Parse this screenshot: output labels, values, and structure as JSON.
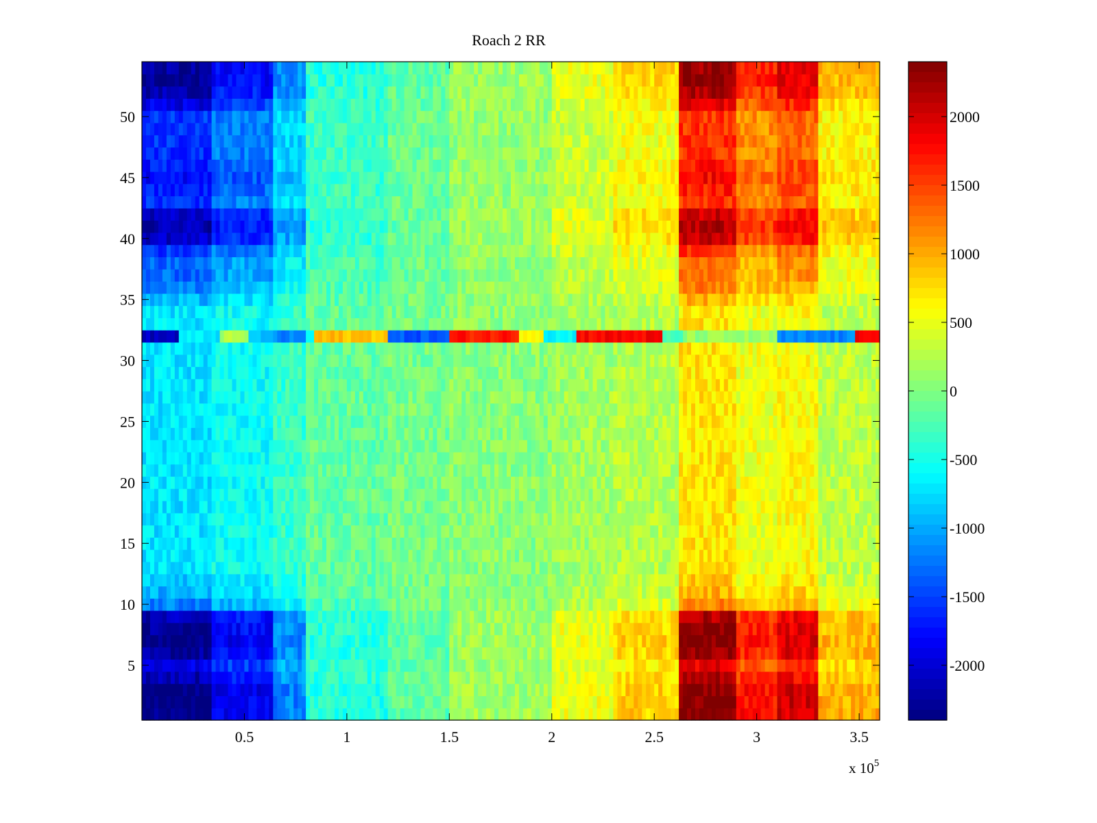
{
  "chart_data": {
    "type": "heatmap",
    "title": "Roach 2 RR",
    "xlabel": "",
    "ylabel": "",
    "x_multiplier_label": "x 10",
    "x_multiplier_exponent": "5",
    "xlim": [
      0,
      3.6
    ],
    "ylim": [
      0.5,
      54.5
    ],
    "x_ticks": [
      0.5,
      1,
      1.5,
      2,
      2.5,
      3,
      3.5
    ],
    "x_tick_labels": [
      "0.5",
      "1",
      "1.5",
      "2",
      "2.5",
      "3",
      "3.5"
    ],
    "y_ticks": [
      5,
      10,
      15,
      20,
      25,
      30,
      35,
      40,
      45,
      50
    ],
    "y_tick_labels": [
      "5",
      "10",
      "15",
      "20",
      "25",
      "30",
      "35",
      "40",
      "45",
      "50"
    ],
    "colormap": "jet",
    "color_range": [
      -2400,
      2400
    ],
    "colorbar_ticks": [
      2000,
      1500,
      1000,
      500,
      0,
      -500,
      -1000,
      -1500,
      -2000
    ],
    "colorbar_tick_labels": [
      "2000",
      "1500",
      "1000",
      "500",
      "0",
      "-500",
      "-1000",
      "-1500",
      "-2000"
    ],
    "rows": 54,
    "x_segments_1e5": [
      [
        0.0,
        0.35,
        0.4
      ],
      [
        0.35,
        0.65,
        0.45
      ],
      [
        0.65,
        0.8,
        0.6
      ],
      [
        0.8,
        1.2,
        0.8
      ],
      [
        1.2,
        1.5,
        0.9
      ],
      [
        1.5,
        2.0,
        1.0
      ],
      [
        2.0,
        2.3,
        1.1
      ],
      [
        2.3,
        2.63,
        1.2
      ],
      [
        2.63,
        2.9,
        1.5
      ],
      [
        2.9,
        3.1,
        1.3
      ],
      [
        3.1,
        3.3,
        1.4
      ],
      [
        3.3,
        3.6,
        1.15
      ]
    ],
    "x_profile_values": [
      -1600,
      -1250,
      -800,
      -300,
      -100,
      100,
      350,
      550,
      1600,
      1150,
      1350,
      650
    ],
    "row_amplitude": [
      2.0,
      2.0,
      2.0,
      1.8,
      1.6,
      1.9,
      2.0,
      1.9,
      1.8,
      1.0,
      0.8,
      0.7,
      0.6,
      0.6,
      0.6,
      0.6,
      0.6,
      0.6,
      0.6,
      0.6,
      0.6,
      0.6,
      0.6,
      0.6,
      0.6,
      0.6,
      0.6,
      0.6,
      0.6,
      0.6,
      0.6,
      0.6,
      0.6,
      0.6,
      0.8,
      1.0,
      1.1,
      1.1,
      1.3,
      1.7,
      1.8,
      1.7,
      1.3,
      1.4,
      1.5,
      1.4,
      1.3,
      1.3,
      1.3,
      1.3,
      1.6,
      1.8,
      1.9,
      1.9
    ],
    "special_row": {
      "row": 32,
      "segments_1e5": [
        [
          0.0,
          0.18,
          -2100
        ],
        [
          0.18,
          0.38,
          -700
        ],
        [
          0.38,
          0.52,
          200
        ],
        [
          0.52,
          0.65,
          -900
        ],
        [
          0.65,
          0.8,
          -1200
        ],
        [
          0.8,
          0.85,
          -600
        ],
        [
          0.85,
          1.2,
          900
        ],
        [
          1.2,
          1.5,
          -1400
        ],
        [
          1.5,
          1.85,
          1700
        ],
        [
          1.85,
          1.97,
          700
        ],
        [
          1.97,
          2.13,
          -600
        ],
        [
          2.13,
          2.55,
          1800
        ],
        [
          2.55,
          2.65,
          -300
        ],
        [
          2.65,
          3.1,
          100
        ],
        [
          3.1,
          3.47,
          -1200
        ],
        [
          3.47,
          3.6,
          1900
        ]
      ]
    }
  }
}
